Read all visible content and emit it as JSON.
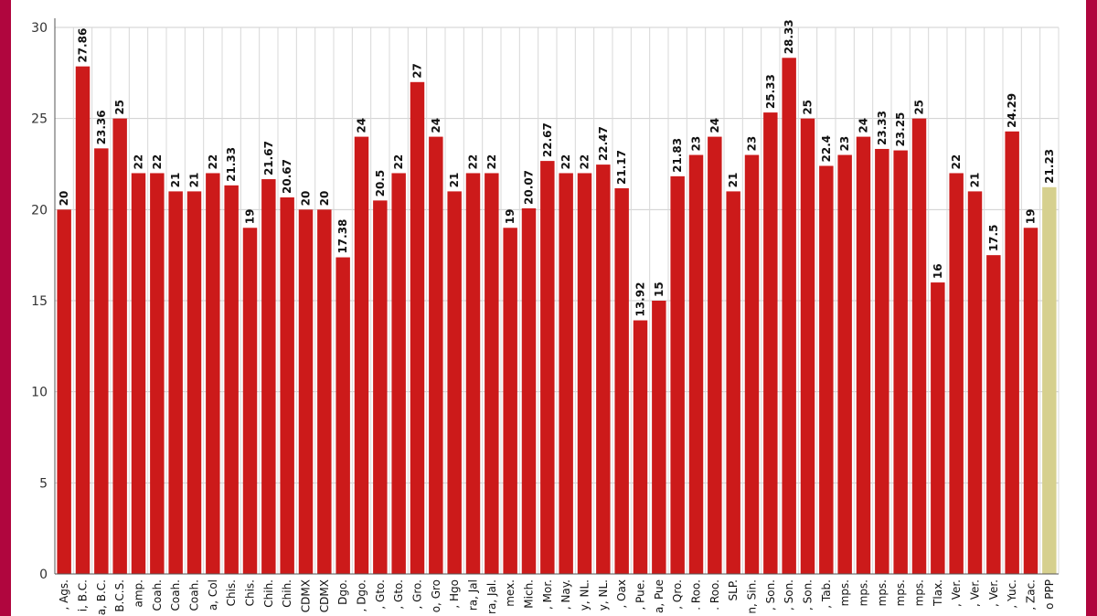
{
  "chart_data": {
    "type": "bar",
    "categories": [
      ", Ags.",
      "i, B.C.",
      "a, B.C.",
      "B.C.S.",
      "amp.",
      "Coah.",
      "Coah.",
      "Coah.",
      "a, Col",
      "Chis.",
      "Chis.",
      "Chih.",
      "Chih.",
      "CDMX",
      "CDMX",
      "Dgo.",
      ", Dgo.",
      ", Gto.",
      ", Gto.",
      ", Gro.",
      "o, Gro",
      ", Hgo",
      "ra, Jal",
      "ra, Jal.",
      "mex.",
      "Mich.",
      ", Mor.",
      ", Nay.",
      "y, NL.",
      "y, NL.",
      ", Oax",
      ", Pue.",
      "a, Pue",
      ", Qro.",
      ". Roo.",
      ". Roo.",
      "SLP.",
      "n, Sin.",
      ", Son.",
      ", Son.",
      ", Son.",
      ", Tab.",
      "mps.",
      "mps.",
      "mps.",
      "mps.",
      "mps.",
      "Tlax.",
      ", Ver.",
      ", Ver.",
      ", Ver.",
      ", Yuc.",
      ", Zac.",
      "o PPP"
    ],
    "values": [
      20,
      27.86,
      23.36,
      25,
      22,
      22,
      21,
      21,
      22,
      21.33,
      19,
      21.67,
      20.67,
      20,
      20,
      17.38,
      24,
      20.5,
      22,
      27,
      24,
      21,
      22,
      22,
      19,
      20.07,
      22.67,
      22,
      22,
      22.47,
      21.17,
      13.92,
      15,
      21.83,
      23,
      24,
      21,
      23,
      25.33,
      28.33,
      25,
      22.4,
      23,
      24,
      23.33,
      23.25,
      25,
      16,
      22,
      21,
      17.5,
      24.29,
      19,
      21.23
    ],
    "colors": [
      "#cc1a1a",
      "#cc1a1a",
      "#cc1a1a",
      "#cc1a1a",
      "#cc1a1a",
      "#cc1a1a",
      "#cc1a1a",
      "#cc1a1a",
      "#cc1a1a",
      "#cc1a1a",
      "#cc1a1a",
      "#cc1a1a",
      "#cc1a1a",
      "#cc1a1a",
      "#cc1a1a",
      "#cc1a1a",
      "#cc1a1a",
      "#cc1a1a",
      "#cc1a1a",
      "#cc1a1a",
      "#cc1a1a",
      "#cc1a1a",
      "#cc1a1a",
      "#cc1a1a",
      "#cc1a1a",
      "#cc1a1a",
      "#cc1a1a",
      "#cc1a1a",
      "#cc1a1a",
      "#cc1a1a",
      "#cc1a1a",
      "#cc1a1a",
      "#cc1a1a",
      "#cc1a1a",
      "#cc1a1a",
      "#cc1a1a",
      "#cc1a1a",
      "#cc1a1a",
      "#cc1a1a",
      "#cc1a1a",
      "#cc1a1a",
      "#cc1a1a",
      "#cc1a1a",
      "#cc1a1a",
      "#cc1a1a",
      "#cc1a1a",
      "#cc1a1a",
      "#cc1a1a",
      "#cc1a1a",
      "#cc1a1a",
      "#cc1a1a",
      "#cc1a1a",
      "#cc1a1a",
      "#d6d08e"
    ],
    "ylim": [
      0,
      30
    ],
    "yticks": [
      0,
      5,
      10,
      15,
      20,
      25,
      30
    ],
    "grid": true
  }
}
